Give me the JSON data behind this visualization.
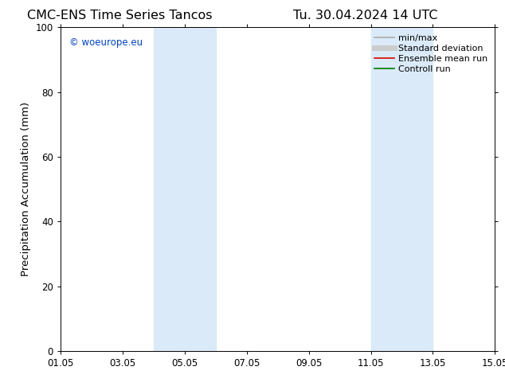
{
  "title_left": "CMC-ENS Time Series Tancos",
  "title_right": "Tu. 30.04.2024 14 UTC",
  "ylabel": "Precipitation Accumulation (mm)",
  "ylim": [
    0,
    100
  ],
  "yticks": [
    0,
    20,
    40,
    60,
    80,
    100
  ],
  "xticklabels": [
    "01.05",
    "03.05",
    "05.05",
    "07.05",
    "09.05",
    "11.05",
    "13.05",
    "15.05"
  ],
  "xtick_positions": [
    0,
    2,
    4,
    6,
    8,
    10,
    12,
    14
  ],
  "xlim": [
    0,
    14
  ],
  "shaded_regions": [
    {
      "x_start": 3.0,
      "x_end": 5.0
    },
    {
      "x_start": 10.0,
      "x_end": 12.0
    }
  ],
  "shaded_color": "#daeaf8",
  "watermark_text": "© woeurope.eu",
  "watermark_color": "#0044bb",
  "legend_items": [
    {
      "label": "min/max",
      "color": "#aaaaaa",
      "lw": 1.2
    },
    {
      "label": "Standard deviation",
      "color": "#cccccc",
      "lw": 5.0
    },
    {
      "label": "Ensemble mean run",
      "color": "#dd0000",
      "lw": 1.2
    },
    {
      "label": "Controll run",
      "color": "#007700",
      "lw": 1.2
    }
  ],
  "bg_color": "#ffffff",
  "title_fontsize": 11.5,
  "tick_fontsize": 8.5,
  "label_fontsize": 9.5,
  "watermark_fontsize": 8.5,
  "legend_fontsize": 8.0
}
